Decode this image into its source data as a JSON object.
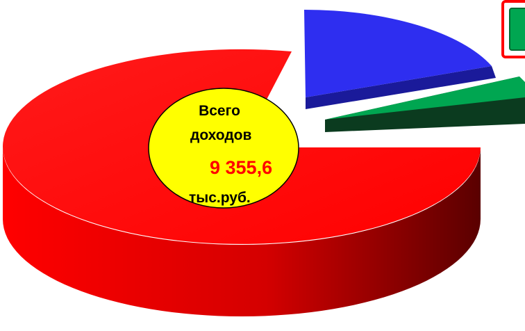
{
  "chart_data": {
    "type": "pie",
    "style": "3d-exploded",
    "slices": [
      {
        "name": "",
        "value": 80.2,
        "color": "#ff0000"
      },
      {
        "name": "",
        "value": 17.0,
        "color": "#2e2ef0"
      },
      {
        "name": "",
        "value": 2.8,
        "color": "#00a651"
      }
    ],
    "center_label": {
      "line1": "Всего",
      "line2": "доходов",
      "value": "9 355,6",
      "unit": "тыс.руб."
    },
    "colors": {
      "center_fill": "#ffff00",
      "callout_border": "#ff0000",
      "callout_fill": "#00a651"
    }
  }
}
